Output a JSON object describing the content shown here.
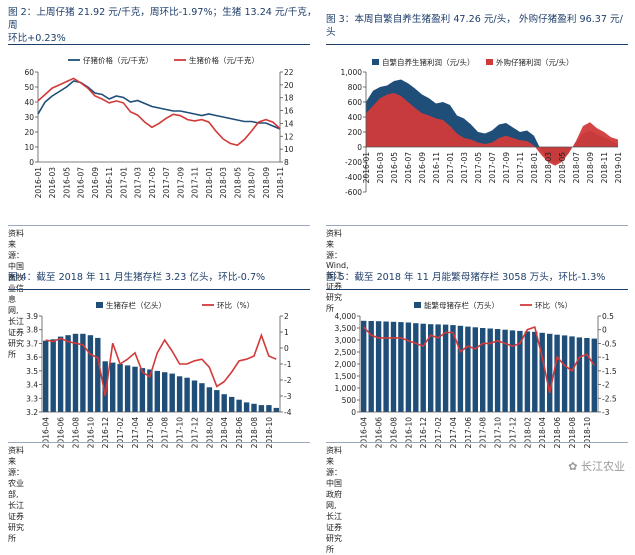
{
  "panels": [
    {
      "title": "图 2：上周仔猪 21.92 元/千克，周环比-1.97%；生猪 13.24 元/千克，周环比+0.23%",
      "title_lines": [
        "图 2：上周仔猪 21.92 元/千克，周环比-1.97%；生猪 13.24 元/千克，周",
        "环比+0.23%"
      ],
      "source": "资料来源：中国畜牧业信息网,长江证券研究所"
    },
    {
      "title": "图 3：本周自繁自养生猪盈利 47.26 元/头，外购仔猪盈利 96.37 元/头",
      "title_lines": [
        "图 3：本周自繁自养生猪盈利 47.26 元/头， 外购仔猪盈利 96.37 元/头"
      ],
      "source": "资料来源：Wind,长江证券研究所"
    },
    {
      "title": "图 4：截至 2018 年 11 月生猪存栏 3.23 亿头，环比-0.7%",
      "title_lines": [
        "图 4：截至 2018 年 11 月生猪存栏 3.23 亿头，环比-0.7%"
      ],
      "source": "资料来源：农业部,长江证券研究所"
    },
    {
      "title": "图 5：截至 2018 年 11 月能繁母猪存栏 3058 万头，环比-1.3%",
      "title_lines": [
        "图 5：截至 2018 年 11 月能繁母猪存栏 3058 万头，环比-1.3%"
      ],
      "source": "资料来源：中国政府网,长江证券研究所"
    }
  ],
  "watermark": "长江农业",
  "colors": {
    "navy": "#1f4e79",
    "red": "#d23a3a",
    "title": "#1f3f6b"
  },
  "chart_data": [
    {
      "type": "line",
      "x": [
        "2016-01",
        "2016-02",
        "2016-03",
        "2016-04",
        "2016-05",
        "2016-06",
        "2016-07",
        "2016-08",
        "2016-09",
        "2016-10",
        "2016-11",
        "2016-12",
        "2017-01",
        "2017-02",
        "2017-03",
        "2017-04",
        "2017-05",
        "2017-06",
        "2017-07",
        "2017-08",
        "2017-09",
        "2017-10",
        "2017-11",
        "2017-12",
        "2018-01",
        "2018-02",
        "2018-03",
        "2018-04",
        "2018-05",
        "2018-06",
        "2018-07",
        "2018-08",
        "2018-09",
        "2018-10",
        "2018-11"
      ],
      "xticks": [
        "2016-01",
        "2016-03",
        "2016-05",
        "2016-07",
        "2016-09",
        "2016-11",
        "2017-01",
        "2017-03",
        "2017-05",
        "2017-07",
        "2017-09",
        "2017-11",
        "2018-01",
        "2018-03",
        "2018-05",
        "2018-07",
        "2018-09",
        "2018-11"
      ],
      "series": [
        {
          "name": "仔猪价格（元/千克）",
          "axis": "left",
          "color": "#1f4e79",
          "values": [
            32,
            40,
            44,
            47,
            50,
            54,
            53,
            50,
            46,
            45,
            42,
            44,
            43,
            40,
            41,
            39,
            37,
            36,
            35,
            34,
            34,
            33,
            32,
            31,
            32,
            31,
            30,
            29,
            28,
            27,
            27,
            26,
            26,
            24,
            22
          ]
        },
        {
          "name": "生猪价格（元/千克）",
          "axis": "right",
          "color": "#d23a3a",
          "values": [
            17.5,
            18.5,
            19.5,
            20,
            20.5,
            21,
            20.3,
            19.5,
            18.3,
            17.8,
            17.2,
            17.5,
            17.2,
            15.8,
            15.3,
            14.2,
            13.4,
            14,
            14.8,
            15.4,
            15.2,
            14.6,
            14.4,
            14.6,
            14.2,
            12.8,
            11.6,
            10.9,
            10.6,
            11.5,
            12.8,
            14.2,
            14.6,
            14.2,
            13.2
          ]
        }
      ],
      "ylim_left": [
        0,
        60
      ],
      "yticks_left": [
        0,
        10,
        20,
        30,
        40,
        50,
        60
      ],
      "ylim_right": [
        8,
        22
      ],
      "yticks_right": [
        8,
        10,
        12,
        14,
        16,
        18,
        20,
        22
      ],
      "grid": false,
      "legend": "top"
    },
    {
      "type": "area",
      "x": [
        "2016-01",
        "2016-02",
        "2016-03",
        "2016-04",
        "2016-05",
        "2016-06",
        "2016-07",
        "2016-08",
        "2016-09",
        "2016-10",
        "2016-11",
        "2016-12",
        "2017-01",
        "2017-02",
        "2017-03",
        "2017-04",
        "2017-05",
        "2017-06",
        "2017-07",
        "2017-08",
        "2017-09",
        "2017-10",
        "2017-11",
        "2017-12",
        "2018-01",
        "2018-02",
        "2018-03",
        "2018-04",
        "2018-05",
        "2018-06",
        "2018-07",
        "2018-08",
        "2018-09",
        "2018-10",
        "2018-11",
        "2018-12",
        "2019-01"
      ],
      "xticks": [
        "2016-01",
        "2016-03",
        "2016-05",
        "2016-07",
        "2016-09",
        "2016-11",
        "2017-01",
        "2017-03",
        "2017-05",
        "2017-07",
        "2017-09",
        "2017-11",
        "2018-01",
        "2018-03",
        "2018-05",
        "2018-07",
        "2018-09",
        "2018-11",
        "2019-01"
      ],
      "series": [
        {
          "name": "自繁自养生猪利润（元/头）",
          "color": "#1f4e79",
          "values": [
            600,
            750,
            800,
            820,
            880,
            900,
            850,
            780,
            700,
            650,
            580,
            600,
            560,
            420,
            380,
            300,
            200,
            180,
            220,
            300,
            320,
            260,
            200,
            220,
            150,
            -40,
            -180,
            -220,
            -170,
            -60,
            60,
            180,
            220,
            170,
            130,
            80,
            40
          ]
        },
        {
          "name": "外购仔猪利润（元/头）",
          "color": "#d23a3a",
          "values": [
            450,
            550,
            650,
            700,
            720,
            680,
            600,
            520,
            450,
            420,
            380,
            360,
            280,
            180,
            120,
            100,
            60,
            40,
            60,
            120,
            150,
            120,
            90,
            80,
            20,
            -100,
            -200,
            -250,
            -200,
            -80,
            80,
            280,
            330,
            250,
            200,
            130,
            100
          ]
        }
      ],
      "ylim": [
        -600,
        1000
      ],
      "yticks": [
        -600,
        -400,
        -200,
        0,
        200,
        400,
        600,
        800,
        1000
      ],
      "grid": false,
      "legend": "top"
    },
    {
      "type": "bar",
      "x": [
        "2016-04",
        "2016-05",
        "2016-06",
        "2016-07",
        "2016-08",
        "2016-09",
        "2016-10",
        "2016-11",
        "2016-12",
        "2017-01",
        "2017-02",
        "2017-03",
        "2017-04",
        "2017-05",
        "2017-06",
        "2017-07",
        "2017-08",
        "2017-09",
        "2017-10",
        "2017-11",
        "2017-12",
        "2018-01",
        "2018-02",
        "2018-03",
        "2018-04",
        "2018-05",
        "2018-06",
        "2018-07",
        "2018-08",
        "2018-09",
        "2018-10",
        "2018-11"
      ],
      "xticks": [
        "2016-04",
        "2016-06",
        "2016-08",
        "2016-10",
        "2016-12",
        "2017-02",
        "2017-04",
        "2017-06",
        "2017-08",
        "2017-10",
        "2017-12",
        "2018-02",
        "2018-04",
        "2018-06",
        "2018-08",
        "2018-10"
      ],
      "series": [
        {
          "name": "生猪存栏（亿头）",
          "axis": "left",
          "kind": "bar",
          "color": "#1f4e79",
          "values": [
            3.72,
            3.73,
            3.75,
            3.76,
            3.77,
            3.77,
            3.76,
            3.74,
            3.57,
            3.56,
            3.55,
            3.54,
            3.53,
            3.52,
            3.51,
            3.5,
            3.49,
            3.48,
            3.46,
            3.45,
            3.43,
            3.41,
            3.38,
            3.36,
            3.33,
            3.31,
            3.29,
            3.27,
            3.26,
            3.25,
            3.25,
            3.23
          ]
        },
        {
          "name": "环比（%）",
          "axis": "right",
          "kind": "line",
          "color": "#d23a3a",
          "values": [
            0.5,
            0.4,
            0.6,
            0.4,
            0.3,
            0.2,
            -0.4,
            -0.6,
            -3.0,
            0.3,
            -1.0,
            -0.7,
            -0.3,
            -1.5,
            -1.8,
            -0.3,
            0.5,
            -0.2,
            -1.0,
            -1.0,
            -0.8,
            -0.7,
            -1.2,
            -2.4,
            -2.1,
            -1.5,
            -0.8,
            -0.7,
            -0.5,
            0.8,
            -0.5,
            -0.7
          ]
        }
      ],
      "ylim_left": [
        3.2,
        3.9
      ],
      "yticks_left": [
        3.2,
        3.3,
        3.4,
        3.5,
        3.6,
        3.7,
        3.8,
        3.9
      ],
      "ylim_right": [
        -4,
        2
      ],
      "yticks_right": [
        -4,
        -3,
        -2,
        -1,
        0,
        1,
        2
      ],
      "grid": false,
      "legend": "top"
    },
    {
      "type": "bar",
      "x": [
        "2016-04",
        "2016-05",
        "2016-06",
        "2016-07",
        "2016-08",
        "2016-09",
        "2016-10",
        "2016-11",
        "2016-12",
        "2017-01",
        "2017-02",
        "2017-03",
        "2017-04",
        "2017-05",
        "2017-06",
        "2017-07",
        "2017-08",
        "2017-09",
        "2017-10",
        "2017-11",
        "2017-12",
        "2018-01",
        "2018-02",
        "2018-03",
        "2018-04",
        "2018-05",
        "2018-06",
        "2018-07",
        "2018-08",
        "2018-09",
        "2018-10",
        "2018-11"
      ],
      "xticks": [
        "2016-04",
        "2016-06",
        "2016-08",
        "2016-10",
        "2016-12",
        "2017-02",
        "2017-04",
        "2017-06",
        "2017-08",
        "2017-10",
        "2017-12",
        "2018-02",
        "2018-04",
        "2018-06",
        "2018-08",
        "2018-10"
      ],
      "series": [
        {
          "name": "能繁母猪存栏（万头）",
          "axis": "left",
          "kind": "bar",
          "color": "#1f4e79",
          "values": [
            3800,
            3790,
            3785,
            3770,
            3760,
            3745,
            3730,
            3700,
            3680,
            3660,
            3650,
            3640,
            3620,
            3590,
            3560,
            3530,
            3500,
            3480,
            3460,
            3430,
            3400,
            3380,
            3360,
            3340,
            3300,
            3260,
            3220,
            3190,
            3150,
            3110,
            3085,
            3058
          ]
        },
        {
          "name": "环比（%）",
          "axis": "right",
          "kind": "line",
          "color": "#d23a3a",
          "values": [
            0.1,
            -0.2,
            -0.3,
            -0.3,
            -0.3,
            -0.3,
            -0.4,
            -0.5,
            -0.6,
            -0.2,
            -0.3,
            -0.1,
            -0.1,
            -0.8,
            -0.6,
            -0.7,
            -0.5,
            -0.5,
            -0.4,
            -0.5,
            -0.6,
            -0.5,
            0.0,
            0.1,
            -1.0,
            -2.3,
            -1.0,
            -1.3,
            -1.5,
            -1.0,
            -0.9,
            -1.3
          ]
        }
      ],
      "ylim_left": [
        0,
        4000
      ],
      "yticks_left": [
        0,
        500,
        1000,
        1500,
        2000,
        2500,
        3000,
        3500,
        4000
      ],
      "ylim_right": [
        -3,
        0.5
      ],
      "yticks_right": [
        -3,
        -2.5,
        -2,
        -1.5,
        -1,
        -0.5,
        0,
        0.5
      ],
      "grid": false,
      "legend": "top"
    }
  ]
}
